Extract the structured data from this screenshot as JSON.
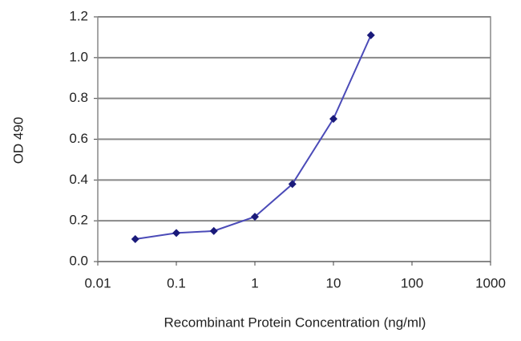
{
  "chart_data": {
    "type": "line",
    "x_label": "Recombinant Protein Concentration (ng/ml)",
    "y_label": "OD 490",
    "x": [
      0.03,
      0.1,
      0.3,
      1,
      3,
      10,
      30
    ],
    "series": [
      {
        "color": "#4b4bb8",
        "marker_color": "#1a1a7a",
        "values": [
          0.11,
          0.14,
          0.15,
          0.22,
          0.38,
          0.7,
          1.11
        ]
      }
    ],
    "xlim": [
      0.01,
      1000
    ],
    "xticks": [
      0.01,
      0.1,
      1,
      10,
      100,
      1000
    ],
    "x_log": true,
    "ylim": [
      0,
      1.2
    ],
    "yticks": [
      {
        "value": 0,
        "label": "0.0"
      },
      0.2,
      0.4,
      0.6,
      0.8,
      {
        "value": 1,
        "label": "1.0"
      },
      1.2
    ],
    "grid": true
  }
}
